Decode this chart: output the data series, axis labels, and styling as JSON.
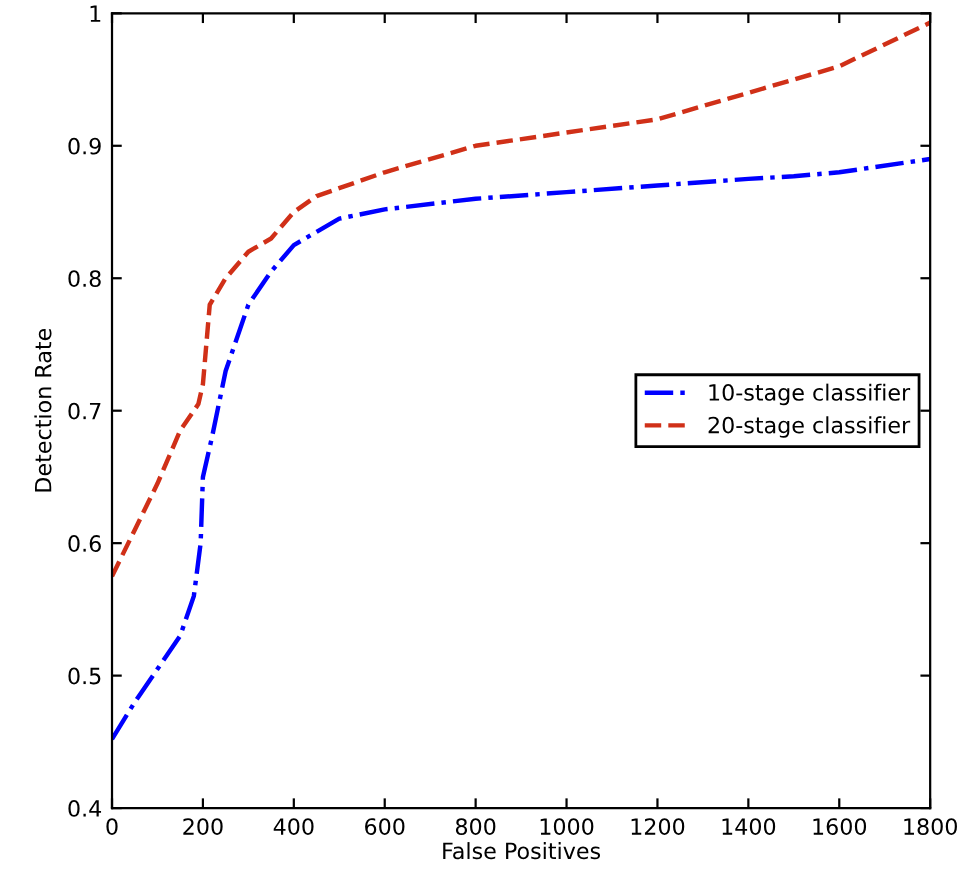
{
  "chart_data": {
    "type": "line",
    "xlabel": "False Positives",
    "ylabel": "Detection Rate",
    "xlim": [
      0,
      1800
    ],
    "xticks": [
      0,
      200,
      400,
      600,
      800,
      1000,
      1200,
      1400,
      1600,
      1800
    ],
    "ylim": [
      0.4,
      1
    ],
    "yticks": [
      0.4,
      0.5,
      0.6,
      0.7,
      0.8,
      0.9,
      1
    ],
    "grid": false,
    "legend": "right",
    "marker": "none",
    "series": [
      {
        "name": "10-stage classifier",
        "color": "#0000ff",
        "line_style": "dashdot",
        "x": [
          0,
          50,
          100,
          150,
          180,
          195,
          200,
          220,
          250,
          300,
          350,
          400,
          500,
          600,
          800,
          1000,
          1200,
          1400,
          1500,
          1600,
          1800
        ],
        "values": [
          0.452,
          0.48,
          0.505,
          0.53,
          0.56,
          0.6,
          0.65,
          0.68,
          0.73,
          0.78,
          0.805,
          0.825,
          0.845,
          0.852,
          0.86,
          0.865,
          0.87,
          0.875,
          0.877,
          0.88,
          0.89
        ]
      },
      {
        "name": "20-stage classifier",
        "color": "#d03018",
        "line_style": "dashed",
        "x": [
          0,
          50,
          100,
          150,
          190,
          200,
          215,
          250,
          300,
          350,
          400,
          450,
          600,
          800,
          1000,
          1200,
          1400,
          1500,
          1600,
          1800
        ],
        "values": [
          0.575,
          0.61,
          0.645,
          0.685,
          0.705,
          0.72,
          0.78,
          0.8,
          0.82,
          0.83,
          0.85,
          0.862,
          0.88,
          0.9,
          0.91,
          0.92,
          0.94,
          0.95,
          0.96,
          0.993
        ]
      }
    ]
  }
}
